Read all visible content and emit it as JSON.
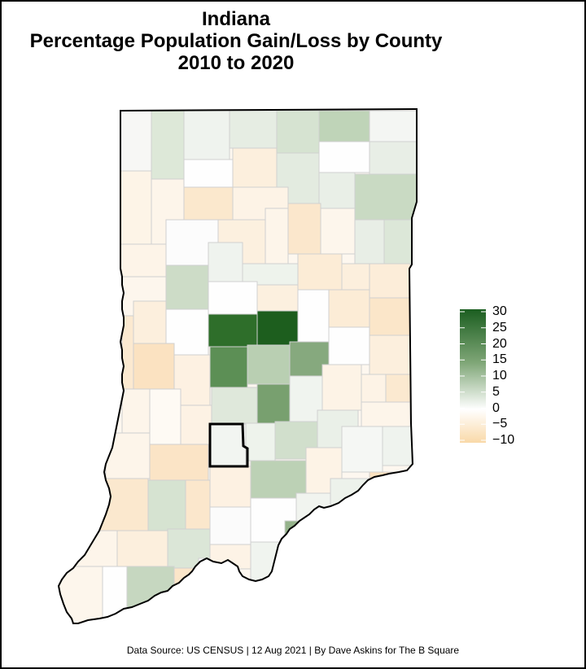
{
  "title": {
    "line1": "Indiana",
    "line2": "Percentage Population Gain/Loss by County",
    "line3": "2010 to 2020"
  },
  "legend": {
    "ticks": [
      "30",
      "25",
      "20",
      "15",
      "10",
      "5",
      "0",
      "−5",
      "−10"
    ],
    "tick_values": [
      30,
      25,
      20,
      15,
      10,
      5,
      0,
      -5,
      -10
    ],
    "range": [
      -10,
      30
    ],
    "color_high": "#1b5e20",
    "color_mid": "#ffffff",
    "color_low": "#f9d9a8"
  },
  "source": "Data Source: US CENSUS | 12 Aug 2021 | By Dave Askins for The B Square",
  "colors": {
    "state_outline": "#000000",
    "county_border": "#d0d0d0",
    "highlight_outline": "#000000"
  }
}
